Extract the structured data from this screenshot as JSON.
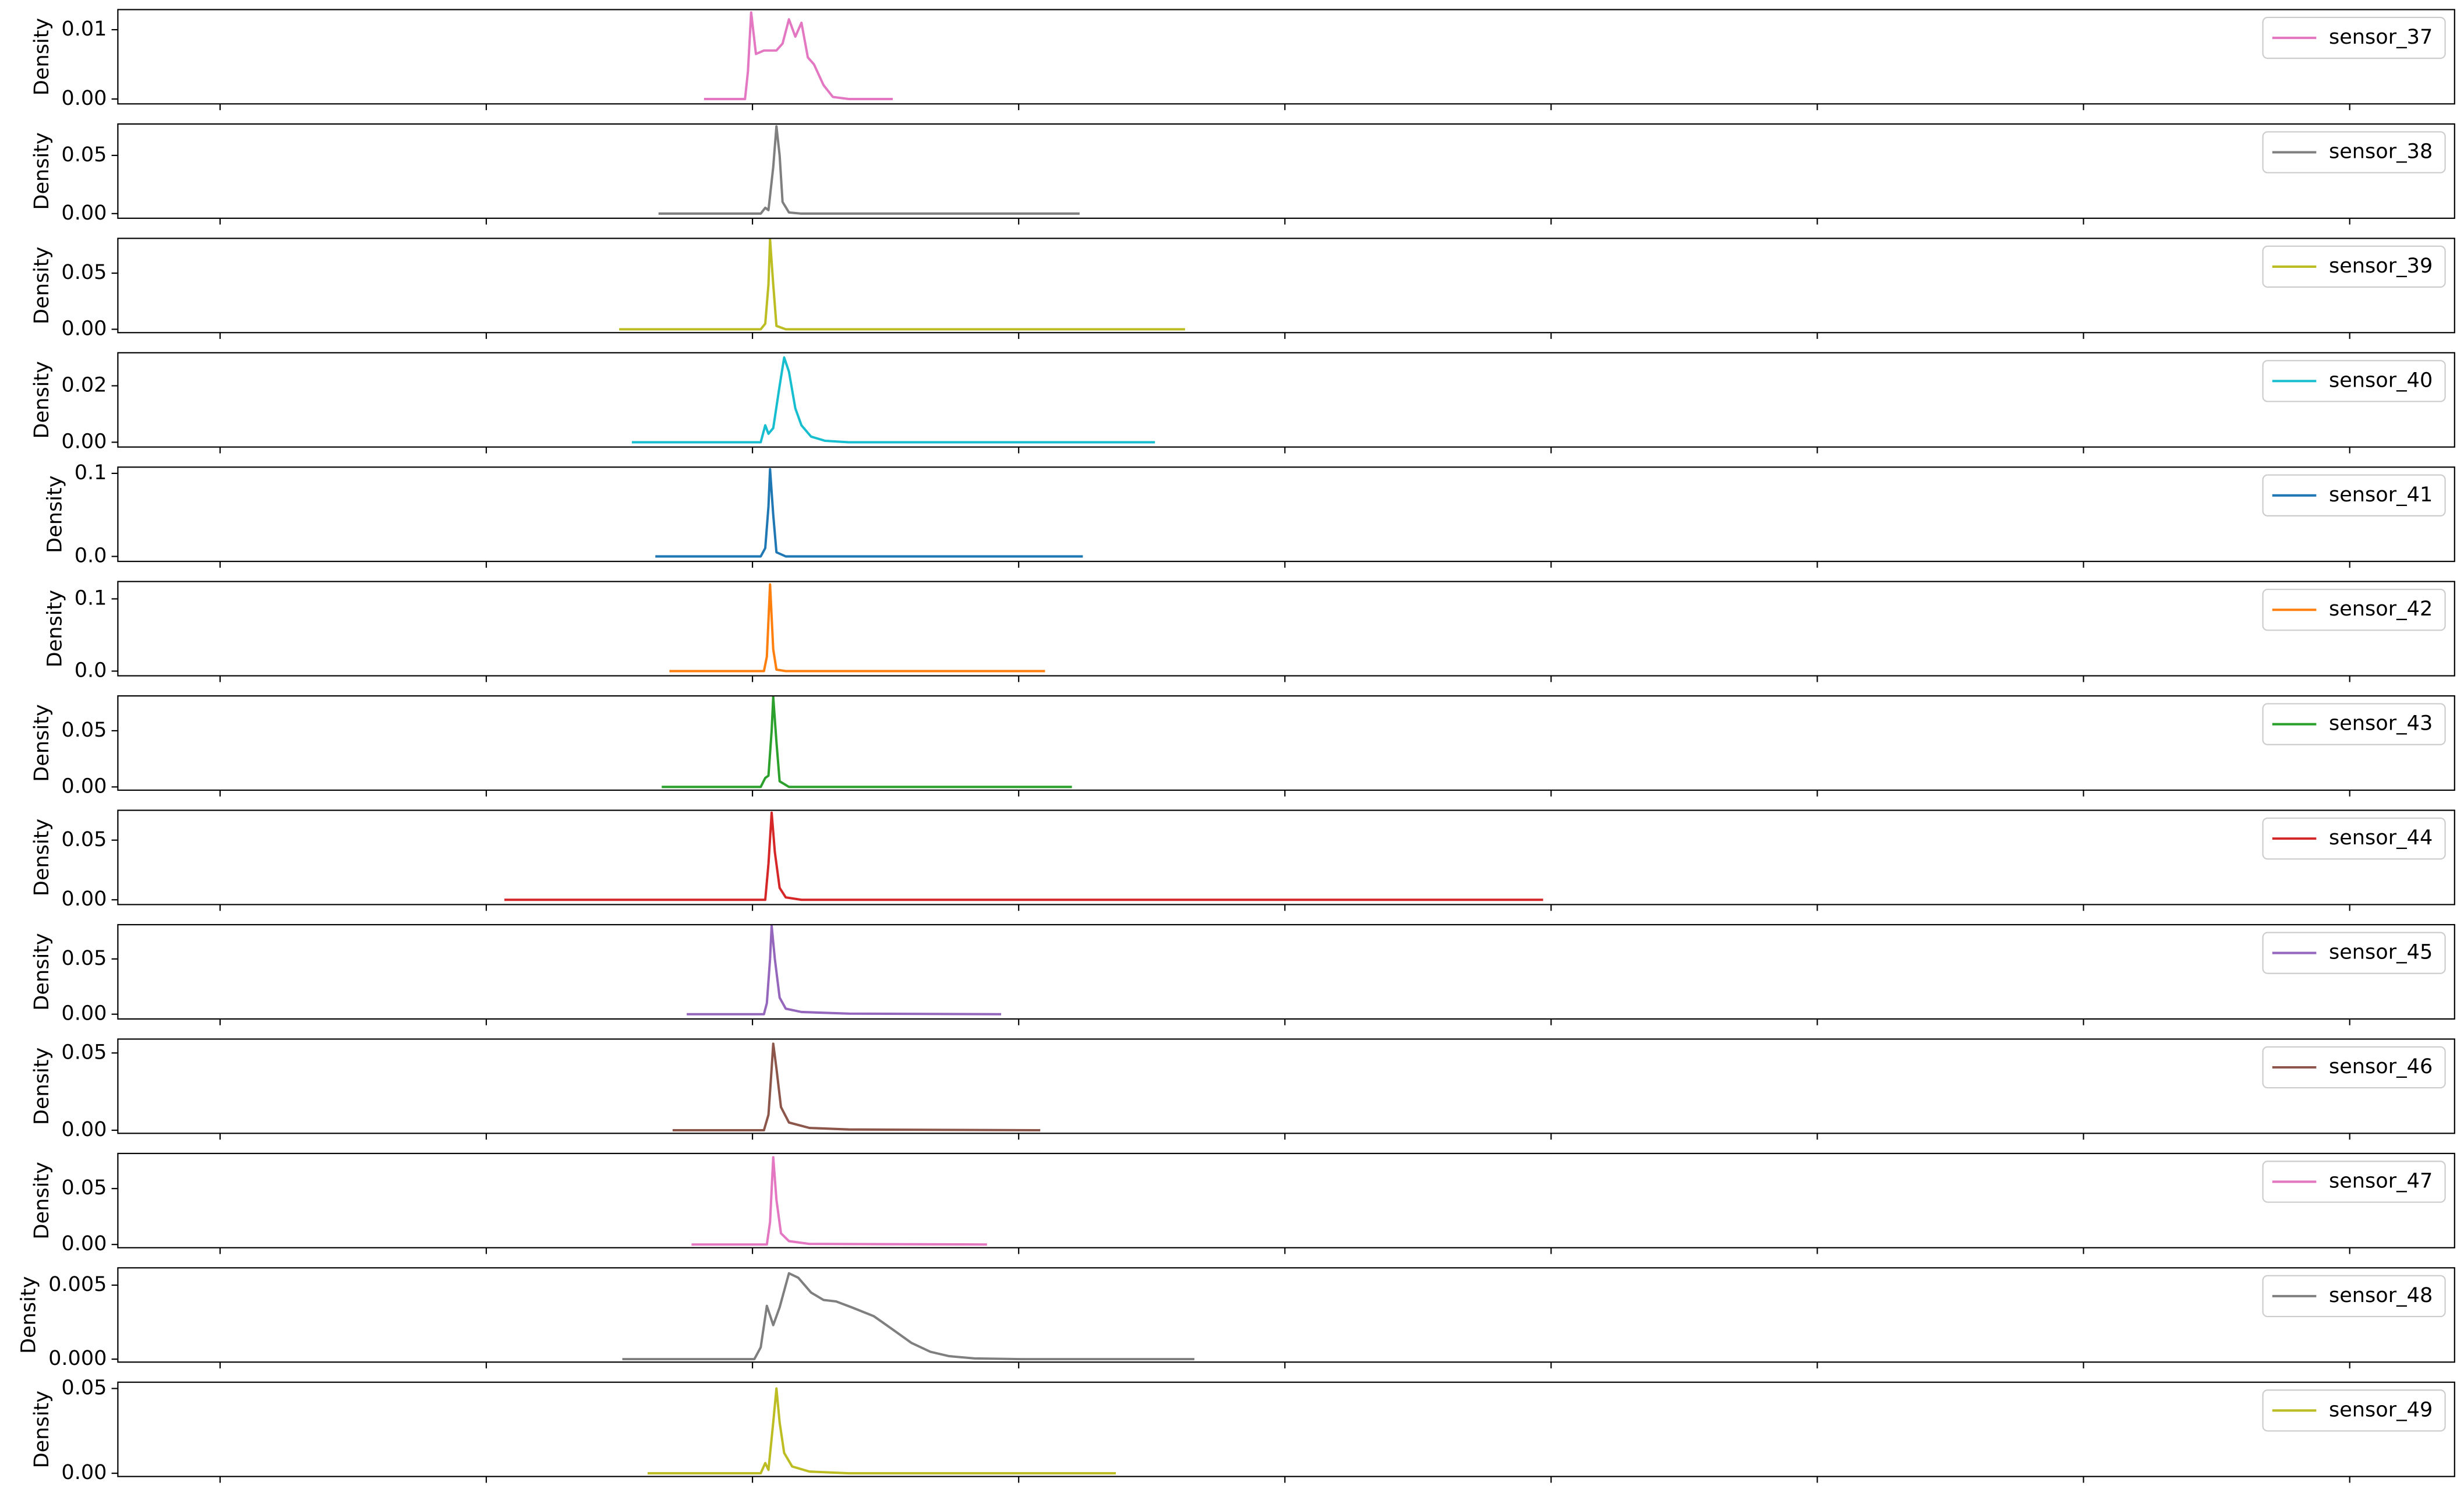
{
  "chart_data": [
    {
      "type": "line",
      "ylabel": "Density",
      "xlim": [
        -0.384,
        8.394
      ],
      "xticks": [
        0,
        1,
        2,
        3,
        4,
        5,
        6,
        7,
        8
      ],
      "ylim": [
        -0.0007,
        0.0129
      ],
      "yticks": [
        {
          "value": 0,
          "label": "0.00"
        },
        {
          "value": 0.01,
          "label": "0.01"
        }
      ],
      "legend": "upper right",
      "x": [
        1.818,
        1.972,
        1.983,
        1.995,
        2.013,
        2.043,
        2.09,
        2.113,
        2.137,
        2.161,
        2.184,
        2.208,
        2.231,
        2.267,
        2.302,
        2.361,
        2.527
      ],
      "series": [
        {
          "name": "sensor_37",
          "color": "#e377c2",
          "values": [
            0,
            0,
            0.004,
            0.0125,
            0.0065,
            0.007,
            0.007,
            0.008,
            0.0115,
            0.009,
            0.011,
            0.006,
            0.005,
            0.002,
            0.0003,
            0,
            0
          ]
        }
      ]
    },
    {
      "type": "line",
      "ylabel": "Density",
      "xlim": [
        -0.384,
        8.394
      ],
      "xticks": [
        0,
        1,
        2,
        3,
        4,
        5,
        6,
        7,
        8
      ],
      "ylim": [
        -0.004,
        0.077
      ],
      "yticks": [
        {
          "value": 0,
          "label": "0.00"
        },
        {
          "value": 0.05,
          "label": "0.05"
        }
      ],
      "legend": "upper right",
      "x": [
        1.647,
        2.031,
        2.048,
        2.06,
        2.078,
        2.09,
        2.102,
        2.113,
        2.137,
        2.184,
        3.229
      ],
      "series": [
        {
          "name": "sensor_38",
          "color": "#7f7f7f",
          "values": [
            0,
            0,
            0.005,
            0.003,
            0.04,
            0.075,
            0.05,
            0.01,
            0.001,
            0,
            0
          ]
        }
      ]
    },
    {
      "type": "line",
      "ylabel": "Density",
      "xlim": [
        -0.384,
        8.394
      ],
      "xticks": [
        0,
        1,
        2,
        3,
        4,
        5,
        6,
        7,
        8
      ],
      "ylim": [
        -0.003,
        0.081
      ],
      "yticks": [
        {
          "value": 0,
          "label": "0.00"
        },
        {
          "value": 0.05,
          "label": "0.05"
        }
      ],
      "legend": "upper right",
      "x": [
        1.499,
        2.031,
        2.048,
        2.06,
        2.066,
        2.078,
        2.09,
        2.125,
        3.625
      ],
      "series": [
        {
          "name": "sensor_39",
          "color": "#bcbd22",
          "values": [
            0,
            0,
            0.005,
            0.04,
            0.08,
            0.04,
            0.003,
            0,
            0
          ]
        }
      ]
    },
    {
      "type": "line",
      "ylabel": "Density",
      "xlim": [
        -0.384,
        8.394
      ],
      "xticks": [
        0,
        1,
        2,
        3,
        4,
        5,
        6,
        7,
        8
      ],
      "ylim": [
        -0.0017,
        0.0317
      ],
      "yticks": [
        {
          "value": 0,
          "label": "0.00"
        },
        {
          "value": 0.02,
          "label": "0.02"
        }
      ],
      "legend": "upper right",
      "x": [
        1.547,
        2.031,
        2.048,
        2.06,
        2.078,
        2.102,
        2.119,
        2.137,
        2.161,
        2.184,
        2.22,
        2.273,
        2.361,
        3.512
      ],
      "series": [
        {
          "name": "sensor_40",
          "color": "#17becf",
          "values": [
            0,
            0,
            0.006,
            0.003,
            0.005,
            0.02,
            0.03,
            0.025,
            0.012,
            0.006,
            0.002,
            0.0005,
            0,
            0
          ]
        }
      ]
    },
    {
      "type": "line",
      "ylabel": "Density",
      "xlim": [
        -0.384,
        8.394
      ],
      "xticks": [
        0,
        1,
        2,
        3,
        4,
        5,
        6,
        7,
        8
      ],
      "ylim": [
        -0.006,
        0.1075
      ],
      "yticks": [
        {
          "value": 0,
          "label": "0.0"
        },
        {
          "value": 0.1,
          "label": "0.1"
        }
      ],
      "legend": "upper right",
      "x": [
        1.635,
        2.031,
        2.048,
        2.06,
        2.066,
        2.078,
        2.09,
        2.125,
        3.241
      ],
      "series": [
        {
          "name": "sensor_41",
          "color": "#1f77b4",
          "values": [
            0,
            0,
            0.01,
            0.06,
            0.105,
            0.05,
            0.005,
            0,
            0
          ]
        }
      ]
    },
    {
      "type": "line",
      "ylabel": "Density",
      "xlim": [
        -0.384,
        8.394
      ],
      "xticks": [
        0,
        1,
        2,
        3,
        4,
        5,
        6,
        7,
        8
      ],
      "ylim": [
        -0.0065,
        0.124
      ],
      "yticks": [
        {
          "value": 0,
          "label": "0.0"
        },
        {
          "value": 0.1,
          "label": "0.1"
        }
      ],
      "legend": "upper right",
      "x": [
        1.688,
        2.043,
        2.054,
        2.066,
        2.078,
        2.09,
        2.125,
        3.099
      ],
      "series": [
        {
          "name": "sensor_42",
          "color": "#ff7f0e",
          "values": [
            0,
            0,
            0.02,
            0.12,
            0.03,
            0.002,
            0,
            0
          ]
        }
      ]
    },
    {
      "type": "line",
      "ylabel": "Density",
      "xlim": [
        -0.384,
        8.394
      ],
      "xticks": [
        0,
        1,
        2,
        3,
        4,
        5,
        6,
        7,
        8
      ],
      "ylim": [
        -0.0029,
        0.081
      ],
      "yticks": [
        {
          "value": 0,
          "label": "0.00"
        },
        {
          "value": 0.05,
          "label": "0.05"
        }
      ],
      "legend": "upper right",
      "x": [
        1.659,
        2.031,
        2.048,
        2.06,
        2.072,
        2.078,
        2.09,
        2.102,
        2.137,
        3.2
      ],
      "series": [
        {
          "name": "sensor_43",
          "color": "#2ca02c",
          "values": [
            0,
            0,
            0.008,
            0.01,
            0.05,
            0.08,
            0.04,
            0.005,
            0,
            0
          ]
        }
      ]
    },
    {
      "type": "line",
      "ylabel": "Density",
      "xlim": [
        -0.384,
        8.394
      ],
      "xticks": [
        0,
        1,
        2,
        3,
        4,
        5,
        6,
        7,
        8
      ],
      "ylim": [
        -0.004,
        0.075
      ],
      "yticks": [
        {
          "value": 0,
          "label": "0.00"
        },
        {
          "value": 0.05,
          "label": "0.05"
        }
      ],
      "legend": "upper right",
      "x": [
        1.068,
        2.048,
        2.06,
        2.072,
        2.084,
        2.102,
        2.125,
        2.184,
        4.97
      ],
      "series": [
        {
          "name": "sensor_44",
          "color": "#d62728",
          "values": [
            0,
            0,
            0.03,
            0.073,
            0.04,
            0.01,
            0.002,
            0,
            0
          ]
        }
      ]
    },
    {
      "type": "line",
      "ylabel": "Density",
      "xlim": [
        -0.384,
        8.394
      ],
      "xticks": [
        0,
        1,
        2,
        3,
        4,
        5,
        6,
        7,
        8
      ],
      "ylim": [
        -0.0043,
        0.081
      ],
      "yticks": [
        {
          "value": 0,
          "label": "0.00"
        },
        {
          "value": 0.05,
          "label": "0.05"
        }
      ],
      "legend": "upper right",
      "x": [
        1.753,
        2.043,
        2.054,
        2.066,
        2.072,
        2.084,
        2.102,
        2.125,
        2.184,
        2.361,
        2.934
      ],
      "series": [
        {
          "name": "sensor_45",
          "color": "#9467bd",
          "values": [
            0,
            0,
            0.01,
            0.05,
            0.08,
            0.05,
            0.015,
            0.005,
            0.002,
            0.0005,
            0
          ]
        }
      ]
    },
    {
      "type": "line",
      "ylabel": "Density",
      "xlim": [
        -0.384,
        8.394
      ],
      "xticks": [
        0,
        1,
        2,
        3,
        4,
        5,
        6,
        7,
        8
      ],
      "ylim": [
        -0.002,
        0.059
      ],
      "yticks": [
        {
          "value": 0,
          "label": "0.00"
        },
        {
          "value": 0.05,
          "label": "0.05"
        }
      ],
      "legend": "upper right",
      "x": [
        1.7,
        2.043,
        2.06,
        2.072,
        2.078,
        2.09,
        2.107,
        2.137,
        2.214,
        2.361,
        3.081
      ],
      "series": [
        {
          "name": "sensor_46",
          "color": "#8c564b",
          "values": [
            0,
            0,
            0.01,
            0.04,
            0.056,
            0.04,
            0.015,
            0.005,
            0.0015,
            0.0005,
            0
          ]
        }
      ]
    },
    {
      "type": "line",
      "ylabel": "Density",
      "xlim": [
        -0.384,
        8.394
      ],
      "xticks": [
        0,
        1,
        2,
        3,
        4,
        5,
        6,
        7,
        8
      ],
      "ylim": [
        -0.0029,
        0.0814
      ],
      "yticks": [
        {
          "value": 0,
          "label": "0.00"
        },
        {
          "value": 0.05,
          "label": "0.05"
        }
      ],
      "legend": "upper right",
      "x": [
        1.771,
        2.054,
        2.066,
        2.078,
        2.09,
        2.107,
        2.137,
        2.214,
        2.881
      ],
      "series": [
        {
          "name": "sensor_47",
          "color": "#e377c2",
          "values": [
            0,
            0,
            0.02,
            0.078,
            0.04,
            0.01,
            0.003,
            0.0005,
            0
          ]
        }
      ]
    },
    {
      "type": "line",
      "ylabel": "Density",
      "xlim": [
        -0.384,
        8.394
      ],
      "xticks": [
        0,
        1,
        2,
        3,
        4,
        5,
        6,
        7,
        8
      ],
      "ylim": [
        -0.0002,
        0.00617
      ],
      "yticks": [
        {
          "value": 0,
          "label": "0.000"
        },
        {
          "value": 0.005,
          "label": "0.005"
        }
      ],
      "legend": "upper right",
      "x": [
        1.511,
        2.007,
        2.031,
        2.054,
        2.078,
        2.102,
        2.137,
        2.172,
        2.22,
        2.267,
        2.314,
        2.373,
        2.456,
        2.527,
        2.597,
        2.668,
        2.739,
        2.834,
        3.011,
        3.66
      ],
      "series": [
        {
          "name": "sensor_48",
          "color": "#7f7f7f",
          "values": [
            0,
            0,
            0.0008,
            0.0036,
            0.0023,
            0.0035,
            0.0058,
            0.0055,
            0.0045,
            0.004,
            0.0039,
            0.0035,
            0.0029,
            0.002,
            0.0011,
            0.0005,
            0.0002,
            5e-05,
            0,
            0
          ]
        }
      ]
    },
    {
      "type": "line",
      "ylabel": "Density",
      "xlim": [
        -0.384,
        8.394
      ],
      "xticks": [
        0,
        1,
        2,
        3,
        4,
        5,
        6,
        7,
        8
      ],
      "ylim": [
        -0.0019,
        0.0537
      ],
      "yticks": [
        {
          "value": 0,
          "label": "0.00"
        },
        {
          "value": 0.05,
          "label": "0.05"
        }
      ],
      "legend": "upper right",
      "x": [
        1.606,
        2.031,
        2.048,
        2.06,
        2.078,
        2.09,
        2.102,
        2.119,
        2.149,
        2.214,
        2.361,
        3.365
      ],
      "series": [
        {
          "name": "sensor_49",
          "color": "#bcbd22",
          "values": [
            0,
            0,
            0.006,
            0.002,
            0.03,
            0.05,
            0.03,
            0.012,
            0.004,
            0.001,
            0,
            0
          ]
        }
      ]
    }
  ]
}
